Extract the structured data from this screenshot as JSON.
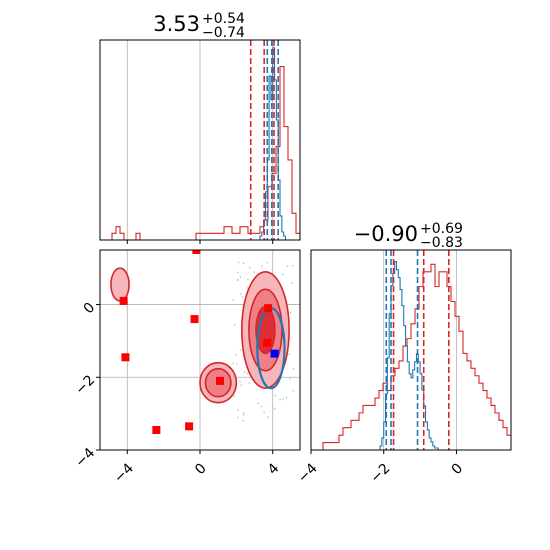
{
  "chart_data": {
    "type": "corner",
    "colors": {
      "primary": "#d62728",
      "secondary": "#1f77b4",
      "grid": "#b0b0b0",
      "axis": "#000000",
      "marker_red": "#ff0000",
      "marker_blue": "#0000ff"
    },
    "panel_top_left": {
      "type": "histogram",
      "title": {
        "value": "3.53",
        "plus": "+0.54",
        "minus": "−0.74"
      },
      "xlim": [
        -5.5,
        5.5
      ],
      "xticks": [
        -4,
        0,
        4
      ],
      "grid": true,
      "quantile_lines": {
        "red": [
          2.79,
          3.53,
          4.07
        ],
        "blue": [
          3.7,
          3.95,
          4.3
        ]
      },
      "series_red": {
        "name": "",
        "edges_start": -5.5,
        "bin_width": 0.22,
        "values": [
          0,
          0,
          0,
          1,
          2,
          1,
          0,
          0,
          0,
          1,
          0,
          0,
          0,
          0,
          0,
          0,
          0,
          0,
          0,
          0,
          0,
          0,
          0,
          0,
          1,
          1,
          1,
          1,
          1,
          1,
          1,
          2,
          2,
          1,
          1,
          2,
          2,
          1,
          1,
          1,
          2,
          3,
          8,
          10,
          14,
          26,
          17,
          12,
          4,
          1
        ]
      },
      "series_blue": {
        "name": "",
        "edges_start": 3.3,
        "bin_width": 0.1,
        "values": [
          2,
          4,
          10,
          24,
          40,
          82,
          70,
          96,
          80,
          60,
          30,
          12,
          4,
          2
        ]
      }
    },
    "panel_bottom_right": {
      "type": "histogram",
      "title": {
        "value": "−0.90",
        "plus": "+0.69",
        "minus": "−0.83"
      },
      "xlim": [
        -4.0,
        1.5
      ],
      "xticks": [
        -4,
        -2,
        0
      ],
      "grid": true,
      "quantile_lines": {
        "red": [
          -1.73,
          -0.9,
          -0.21
        ],
        "blue": [
          -1.93,
          -1.8,
          -1.07
        ]
      },
      "series_red": {
        "name": "",
        "edges_start": -4.0,
        "bin_width": 0.11,
        "values": [
          0,
          0,
          0,
          1,
          1,
          1,
          1,
          2,
          3,
          3,
          4,
          4,
          5,
          6,
          6,
          6,
          7,
          8,
          9,
          8,
          10,
          11,
          12,
          14,
          15,
          17,
          19,
          22,
          24,
          24,
          25,
          22,
          24,
          24,
          22,
          20,
          18,
          16,
          13,
          12,
          11,
          10,
          9,
          8,
          7,
          6,
          5,
          4,
          3,
          2,
          2,
          1,
          1,
          1,
          0
        ]
      },
      "series_blue": {
        "name": "",
        "edges_start": -2.1,
        "bin_width": 0.05,
        "values": [
          2,
          6,
          14,
          28,
          46,
          68,
          82,
          88,
          94,
          90,
          86,
          80,
          72,
          62,
          52,
          44,
          38,
          36,
          40,
          44,
          48,
          44,
          38,
          30,
          22,
          14,
          10,
          6,
          4,
          2,
          1,
          1
        ]
      }
    },
    "panel_bottom_left": {
      "type": "2d-contour",
      "xlim": [
        -5.5,
        5.5
      ],
      "ylim": [
        -4.0,
        1.5
      ],
      "xticks": [
        -4,
        0,
        4
      ],
      "yticks": [
        -4,
        -2,
        0
      ],
      "grid": true,
      "red_markers": [
        {
          "x": -4.2,
          "y": 0.1
        },
        {
          "x": -4.1,
          "y": -1.45
        },
        {
          "x": -0.3,
          "y": -0.4
        },
        {
          "x": -0.2,
          "y": 1.5
        },
        {
          "x": 1.1,
          "y": -2.1
        },
        {
          "x": -2.4,
          "y": -3.45
        },
        {
          "x": -0.6,
          "y": -3.35
        },
        {
          "x": 3.7,
          "y": -1.05
        },
        {
          "x": 3.75,
          "y": -0.1
        }
      ],
      "blue_markers": [
        {
          "x": 4.1,
          "y": -1.35
        }
      ],
      "regions": [
        {
          "cx": 3.6,
          "cy": -0.7,
          "rx": 1.3,
          "ry": 1.6,
          "levels": 3
        },
        {
          "cx": 1.0,
          "cy": -2.15,
          "rx": 1.0,
          "ry": 0.55,
          "levels": 2
        },
        {
          "cx": -4.4,
          "cy": 0.55,
          "rx": 0.5,
          "ry": 0.45,
          "levels": 1
        }
      ]
    }
  }
}
